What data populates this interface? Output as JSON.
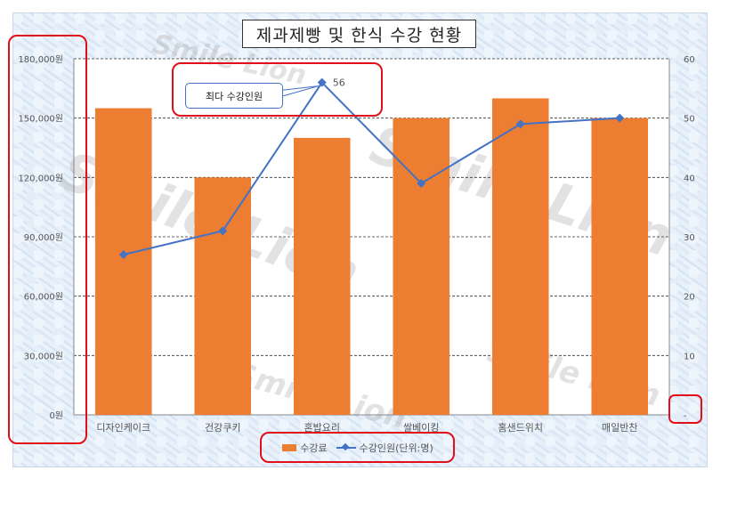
{
  "chart_data": {
    "type": "bar+line",
    "title": "제과제빵 및 한식 수강 현황",
    "categories": [
      "디자인케이크",
      "건강쿠키",
      "혼밥요리",
      "쌀베이킹",
      "홈샌드위치",
      "매일반찬"
    ],
    "series": [
      {
        "name": "수강료",
        "type": "bar",
        "axis": "left",
        "values": [
          155000,
          120000,
          140000,
          150000,
          160000,
          150000
        ]
      },
      {
        "name": "수강인원(단위:명)",
        "type": "line",
        "axis": "right",
        "values": [
          27,
          31,
          56,
          39,
          49,
          50
        ]
      }
    ],
    "y_left": {
      "min": 0,
      "max": 180000,
      "ticks": [
        "0원",
        "30,000원",
        "60,000원",
        "90,000원",
        "120,000원",
        "150,000원",
        "180,000원"
      ]
    },
    "y_right": {
      "min": 0,
      "max": 60,
      "ticks": [
        "-",
        "10",
        "20",
        "30",
        "40",
        "50",
        "60"
      ]
    },
    "grid": "dashed horizontal",
    "legend_position": "bottom",
    "annotation": {
      "text": "최다 수강인원",
      "data_label": "56",
      "category": "혼밥요리"
    },
    "colors": {
      "bar": "#ed7d31",
      "line": "#4472c4",
      "highlight": "#e0101a"
    }
  },
  "watermark": "Smile Lion"
}
